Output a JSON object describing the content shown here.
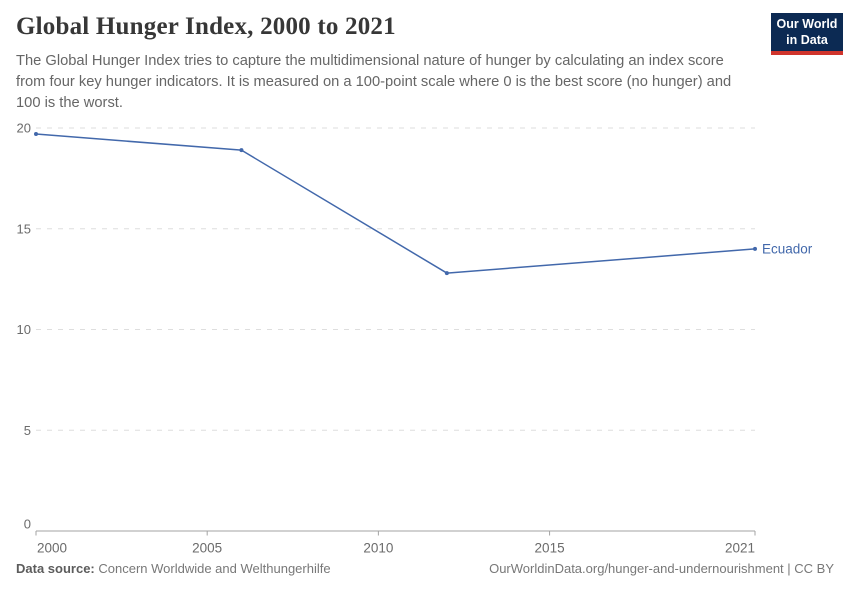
{
  "header": {
    "title": "Global Hunger Index, 2000 to 2021",
    "subtitle": "The Global Hunger Index tries to capture the multidimensional nature of hunger by calculating an index score from four key hunger indicators. It is measured on a 100-point scale where 0 is the best score (no hunger) and 100 is the worst."
  },
  "logo": {
    "line1": "Our World",
    "line2": "in Data",
    "bg_color": "#0c2a53",
    "accent_color": "#d0342c"
  },
  "chart_data": {
    "type": "line",
    "title": "Global Hunger Index, 2000 to 2021",
    "xlabel": "",
    "ylabel": "",
    "xlim": [
      2000,
      2021
    ],
    "ylim": [
      0,
      20
    ],
    "xticks": [
      2000,
      2005,
      2010,
      2015,
      2021
    ],
    "yticks": [
      0,
      5,
      10,
      15,
      20
    ],
    "grid": "horizontal-dashed",
    "legend_position": "end-of-line-label",
    "series": [
      {
        "name": "Ecuador",
        "x": [
          2000,
          2006,
          2012,
          2021
        ],
        "values": [
          19.7,
          18.9,
          12.8,
          14.0
        ],
        "color": "#4268ab"
      }
    ]
  },
  "colors": {
    "line_blue": "#4268ab",
    "grid_gray": "#dedede",
    "axis_gray": "#a3a3a3",
    "tick_text": "#6b6b6b",
    "logo_navy": "#0c2a53",
    "logo_red": "#d0342c"
  },
  "footer": {
    "source_label": "Data source:",
    "source_value": "Concern Worldwide and Welthungerhilfe",
    "credit": "OurWorldinData.org/hunger-and-undernourishment | CC BY"
  }
}
